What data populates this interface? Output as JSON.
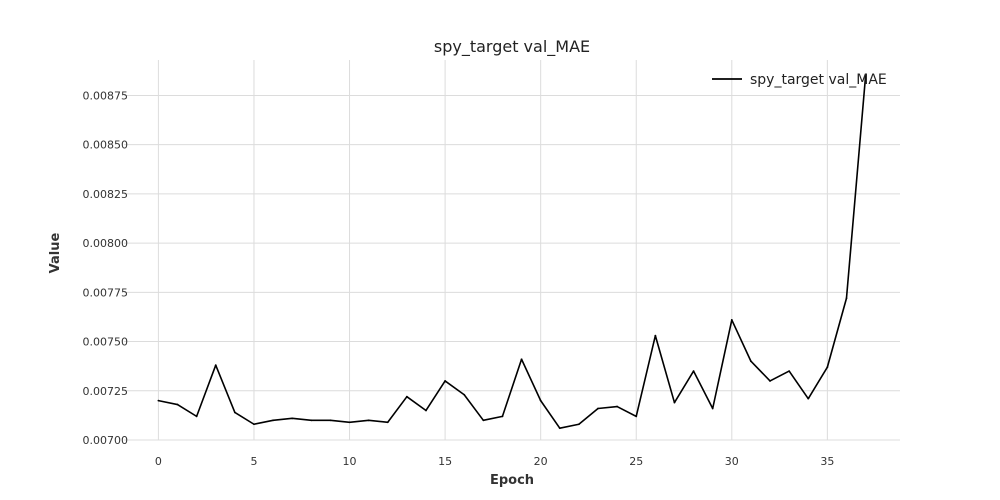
{
  "chart_data": {
    "type": "line",
    "title": "spy_target val_MAE",
    "xlabel": "Epoch",
    "ylabel": "Value",
    "xlim": [
      -1.8,
      38.8
    ],
    "ylim": [
      0.007,
      0.00893
    ],
    "xticks": [
      0,
      5,
      10,
      15,
      20,
      25,
      30,
      35
    ],
    "xtick_labels": [
      "0",
      "5",
      "10",
      "15",
      "20",
      "25",
      "30",
      "35"
    ],
    "yticks": [
      0.007,
      0.00725,
      0.0075,
      0.00775,
      0.008,
      0.00825,
      0.0085,
      0.00875
    ],
    "ytick_labels": [
      "0.00700",
      "0.00725",
      "0.00750",
      "0.00775",
      "0.00800",
      "0.00825",
      "0.00850",
      "0.00875"
    ],
    "grid": true,
    "legend_position": "top-right",
    "series": [
      {
        "name": "spy_target val_MAE",
        "color": "#000000",
        "x": [
          0,
          1,
          2,
          3,
          4,
          5,
          6,
          7,
          8,
          9,
          10,
          11,
          12,
          13,
          14,
          15,
          16,
          17,
          18,
          19,
          20,
          21,
          22,
          23,
          24,
          25,
          26,
          27,
          28,
          29,
          30,
          31,
          32,
          33,
          34,
          35,
          36,
          37
        ],
        "y": [
          0.0072,
          0.00718,
          0.00712,
          0.00738,
          0.00714,
          0.00708,
          0.0071,
          0.00711,
          0.0071,
          0.0071,
          0.00709,
          0.0071,
          0.00709,
          0.00722,
          0.00715,
          0.0073,
          0.00723,
          0.0071,
          0.00712,
          0.00741,
          0.0072,
          0.00706,
          0.00708,
          0.00716,
          0.00717,
          0.00712,
          0.00753,
          0.00719,
          0.00735,
          0.00716,
          0.00761,
          0.0074,
          0.0073,
          0.00735,
          0.00721,
          0.00737,
          0.00772,
          0.00885
        ]
      }
    ]
  }
}
